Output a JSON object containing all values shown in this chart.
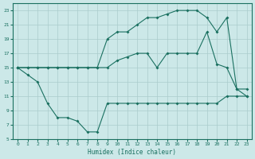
{
  "xlabel": "Humidex (Indice chaleur)",
  "line1_x": [
    0,
    1,
    2,
    3,
    4,
    5,
    6,
    7,
    8,
    9,
    10,
    11,
    12,
    13,
    14,
    15,
    16,
    17,
    18,
    19,
    20,
    21,
    22,
    23
  ],
  "line1_y": [
    15,
    14,
    13,
    10,
    8,
    8,
    7.5,
    6,
    6,
    10,
    10,
    10,
    10,
    10,
    10,
    10,
    10,
    10,
    10,
    10,
    10,
    11,
    11,
    11
  ],
  "line2_x": [
    0,
    1,
    2,
    3,
    4,
    5,
    6,
    7,
    8,
    9,
    10,
    11,
    12,
    13,
    14,
    15,
    16,
    17,
    18,
    19,
    20,
    21,
    22,
    23
  ],
  "line2_y": [
    15,
    15,
    15,
    15,
    15,
    15,
    15,
    15,
    15,
    15,
    16,
    16.5,
    17,
    17,
    15,
    17,
    17,
    17,
    17,
    20,
    15.5,
    15,
    12,
    12
  ],
  "line3_x": [
    0,
    1,
    2,
    3,
    4,
    5,
    6,
    7,
    8,
    9,
    10,
    11,
    12,
    13,
    14,
    15,
    16,
    17,
    18,
    19,
    20,
    21,
    22,
    23
  ],
  "line3_y": [
    15,
    15,
    15,
    15,
    15,
    15,
    15,
    15,
    15,
    19,
    20,
    20,
    21,
    22,
    22,
    22.5,
    23,
    23,
    23,
    22,
    20,
    22,
    12,
    11
  ],
  "color": "#1a7060",
  "bg_color": "#cce8e8",
  "grid_color": "#aacccc",
  "ylim": [
    5,
    24
  ],
  "xlim": [
    -0.5,
    23.5
  ],
  "yticks": [
    5,
    7,
    9,
    11,
    13,
    15,
    17,
    19,
    21,
    23
  ],
  "xticks": [
    0,
    1,
    2,
    3,
    4,
    5,
    6,
    7,
    8,
    9,
    10,
    11,
    12,
    13,
    14,
    15,
    16,
    17,
    18,
    19,
    20,
    21,
    22,
    23
  ]
}
